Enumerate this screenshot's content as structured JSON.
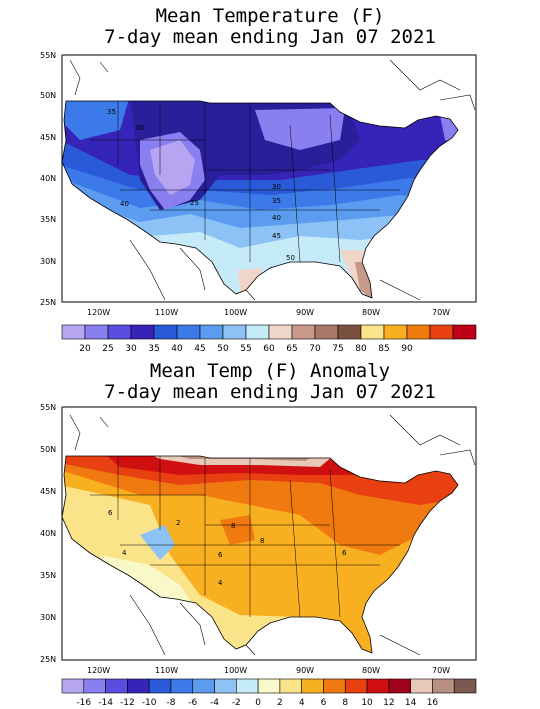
{
  "top": {
    "title_line1": "Mean Temperature (F)",
    "title_line2": "7-day mean ending Jan 07 2021",
    "lat_labels": [
      "55N",
      "50N",
      "45N",
      "40N",
      "35N",
      "30N",
      "25N"
    ],
    "lon_labels": [
      "120W",
      "110W",
      "100W",
      "90W",
      "80W",
      "70W"
    ],
    "contour_labels": [
      "35",
      "30",
      "40",
      "25",
      "30",
      "35",
      "40",
      "45",
      "50"
    ],
    "colorbar": {
      "labels": [
        "20",
        "25",
        "30",
        "35",
        "40",
        "45",
        "50",
        "55",
        "60",
        "65",
        "70",
        "75",
        "80",
        "85",
        "90"
      ],
      "colors": [
        "#b6a6f2",
        "#8a7ff0",
        "#5a4ee0",
        "#3624b8",
        "#2a5ad8",
        "#3b7ae8",
        "#5b9cf0",
        "#8cc2f5",
        "#c6ebf8",
        "#f0d6c8",
        "#c8998a",
        "#a87868",
        "#7a5040",
        "#fbe38a",
        "#f8b020",
        "#f07a10",
        "#e84010",
        "#c00018"
      ]
    }
  },
  "bottom": {
    "title_line1": "Mean Temp (F) Anomaly",
    "title_line2": "7-day mean ending Jan 07 2021",
    "lat_labels": [
      "55N",
      "50N",
      "45N",
      "40N",
      "35N",
      "30N",
      "25N"
    ],
    "lon_labels": [
      "120W",
      "110W",
      "100W",
      "90W",
      "80W",
      "70W"
    ],
    "contour_labels": [
      "6",
      "2",
      "8",
      "4",
      "6",
      "8",
      "4",
      "6"
    ],
    "colorbar": {
      "labels": [
        "-16",
        "-14",
        "-12",
        "-10",
        "-8",
        "-6",
        "-4",
        "-2",
        "0",
        "2",
        "4",
        "6",
        "8",
        "10",
        "12",
        "14",
        "16"
      ],
      "colors": [
        "#b6a6f2",
        "#8a7ff0",
        "#5a4ee0",
        "#3624b8",
        "#2a5ad8",
        "#3b7ae8",
        "#5b9cf0",
        "#8cc2f5",
        "#c6ebf8",
        "#f8f8c8",
        "#fbe38a",
        "#f8b020",
        "#f07a10",
        "#e84010",
        "#d01010",
        "#a00018",
        "#e8c8b8",
        "#b89080",
        "#7a5a50"
      ]
    }
  }
}
